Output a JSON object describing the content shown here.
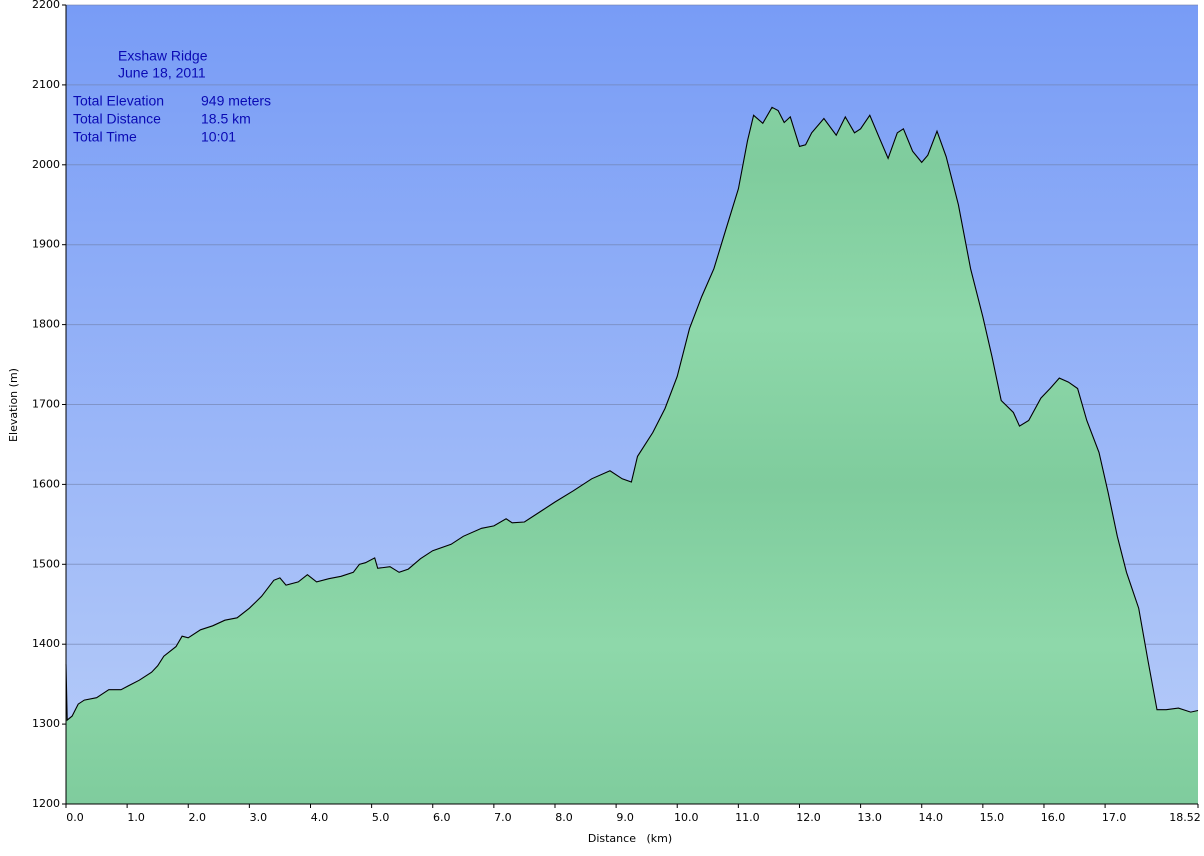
{
  "chart_data": {
    "type": "area",
    "title": "Exshaw Ridge",
    "subtitle": "June 18, 2011",
    "stats": [
      {
        "label": "Total Elevation",
        "value": "949 meters"
      },
      {
        "label": "Total Distance",
        "value": "18.5 km"
      },
      {
        "label": "Total Time",
        "value": "10:01"
      }
    ],
    "x_label": "Distance   (km)",
    "y_label": "Elevation (m)",
    "x": [
      0,
      0.02,
      0.1,
      0.2,
      0.3,
      0.5,
      0.6,
      0.7,
      0.9,
      1.0,
      1.2,
      1.4,
      1.5,
      1.6,
      1.8,
      1.9,
      2.0,
      2.2,
      2.4,
      2.6,
      2.8,
      3.0,
      3.2,
      3.4,
      3.5,
      3.6,
      3.8,
      3.95,
      4.1,
      4.3,
      4.5,
      4.7,
      4.8,
      4.9,
      5.05,
      5.1,
      5.3,
      5.45,
      5.6,
      5.8,
      6.0,
      6.3,
      6.5,
      6.8,
      7.0,
      7.2,
      7.3,
      7.5,
      7.8,
      8.0,
      8.3,
      8.6,
      8.9,
      9.1,
      9.25,
      9.35,
      9.6,
      9.8,
      10.0,
      10.2,
      10.4,
      10.6,
      10.8,
      11.0,
      11.15,
      11.25,
      11.4,
      11.55,
      11.65,
      11.75,
      11.85,
      12.0,
      12.1,
      12.2,
      12.4,
      12.6,
      12.75,
      12.9,
      13.0,
      13.15,
      13.3,
      13.45,
      13.6,
      13.7,
      13.85,
      14.0,
      14.1,
      14.25,
      14.4,
      14.6,
      14.8,
      15.0,
      15.15,
      15.3,
      15.5,
      15.6,
      15.75,
      15.95,
      16.1,
      16.25,
      16.4,
      16.55,
      16.7,
      16.9,
      17.05,
      17.2,
      17.35,
      17.55,
      17.7,
      17.85,
      18.0,
      18.2,
      18.4,
      18.52
    ],
    "series": [
      {
        "name": "Elevation",
        "color": "#8ed8aa",
        "values": [
          1375,
          1305,
          1310,
          1325,
          1330,
          1333,
          1338,
          1343,
          1343,
          1347,
          1355,
          1365,
          1373,
          1385,
          1397,
          1410,
          1408,
          1418,
          1423,
          1430,
          1433,
          1445,
          1460,
          1480,
          1483,
          1474,
          1478,
          1487,
          1478,
          1482,
          1485,
          1490,
          1500,
          1502,
          1508,
          1495,
          1497,
          1490,
          1494,
          1507,
          1517,
          1525,
          1535,
          1545,
          1548,
          1557,
          1552,
          1553,
          1568,
          1578,
          1592,
          1607,
          1617,
          1607,
          1603,
          1635,
          1665,
          1695,
          1735,
          1795,
          1835,
          1870,
          1920,
          1970,
          2030,
          2062,
          2052,
          2072,
          2068,
          2053,
          2060,
          2023,
          2025,
          2040,
          2058,
          2037,
          2060,
          2040,
          2045,
          2062,
          2035,
          2008,
          2040,
          2045,
          2017,
          2003,
          2012,
          2042,
          2010,
          1950,
          1870,
          1810,
          1760,
          1705,
          1690,
          1673,
          1680,
          1708,
          1720,
          1733,
          1728,
          1720,
          1680,
          1640,
          1590,
          1535,
          1490,
          1445,
          1380,
          1318,
          1318,
          1320,
          1315,
          1317
        ]
      }
    ],
    "xlim": [
      0,
      18.52
    ],
    "xticks": [
      {
        "value": 0,
        "label": "0.0"
      },
      {
        "value": 1,
        "label": "1.0"
      },
      {
        "value": 2,
        "label": "2.0"
      },
      {
        "value": 3,
        "label": "3.0"
      },
      {
        "value": 4,
        "label": "4.0"
      },
      {
        "value": 5,
        "label": "5.0"
      },
      {
        "value": 6,
        "label": "6.0"
      },
      {
        "value": 7,
        "label": "7.0"
      },
      {
        "value": 8,
        "label": "8.0"
      },
      {
        "value": 9,
        "label": "9.0"
      },
      {
        "value": 10,
        "label": "10.0"
      },
      {
        "value": 11,
        "label": "11.0"
      },
      {
        "value": 12,
        "label": "12.0"
      },
      {
        "value": 13,
        "label": "13.0"
      },
      {
        "value": 14,
        "label": "14.0"
      },
      {
        "value": 15,
        "label": "15.0"
      },
      {
        "value": 16,
        "label": "16.0"
      },
      {
        "value": 17,
        "label": "17.0"
      },
      18.52
    ],
    "ylim": [
      1200,
      2200
    ],
    "yticks": [
      1200,
      1300,
      1400,
      1500,
      1600,
      1700,
      1800,
      1900,
      2000,
      2100,
      2200
    ],
    "grid": true
  }
}
